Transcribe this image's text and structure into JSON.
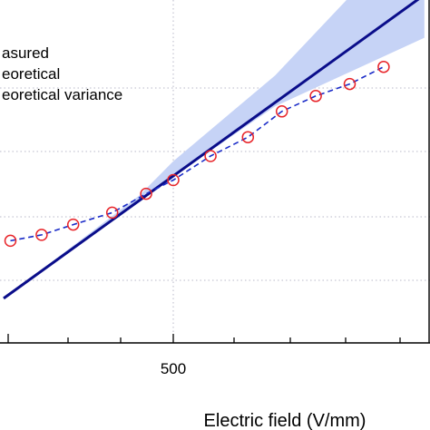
{
  "chart_data": {
    "type": "line",
    "xlabel": "Electric field (V/mm)",
    "ylabel": "",
    "x_tick_labels": [
      {
        "value": 500,
        "label": "500"
      }
    ],
    "xlim": [
      0,
      1000
    ],
    "ylim": [
      0,
      1
    ],
    "grid": "dotted",
    "legend": {
      "placement": "top-left",
      "entries": [
        "asured",
        "eoretical",
        "eoretical variance"
      ]
    },
    "series": [
      {
        "name": "asured",
        "style": "dashed-circles",
        "x": [
          20,
          112,
          205,
          320,
          420,
          500,
          610,
          720,
          820,
          920,
          1020,
          1120
        ],
        "y": [
          0.298,
          0.315,
          0.345,
          0.38,
          0.435,
          0.475,
          0.545,
          0.6,
          0.675,
          0.72,
          0.755,
          0.805
        ]
      },
      {
        "name": "eoretical",
        "style": "solid",
        "x": [
          0,
          1240
        ],
        "y": [
          0.13,
          1.015
        ]
      },
      {
        "name": "eoretical variance",
        "style": "band",
        "x": [
          0,
          400,
          500,
          800,
          1240
        ],
        "upper": [
          0.13,
          0.43,
          0.53,
          0.78,
          1.24
        ],
        "lower": [
          0.13,
          0.41,
          0.485,
          0.69,
          0.89
        ]
      }
    ],
    "colors": {
      "measured": "#1a2bc8",
      "marker_edge": "#e8252a",
      "theoretical": "#0a0d8a",
      "band": "#c6d3f6",
      "grid": "#b8b8c8"
    }
  }
}
